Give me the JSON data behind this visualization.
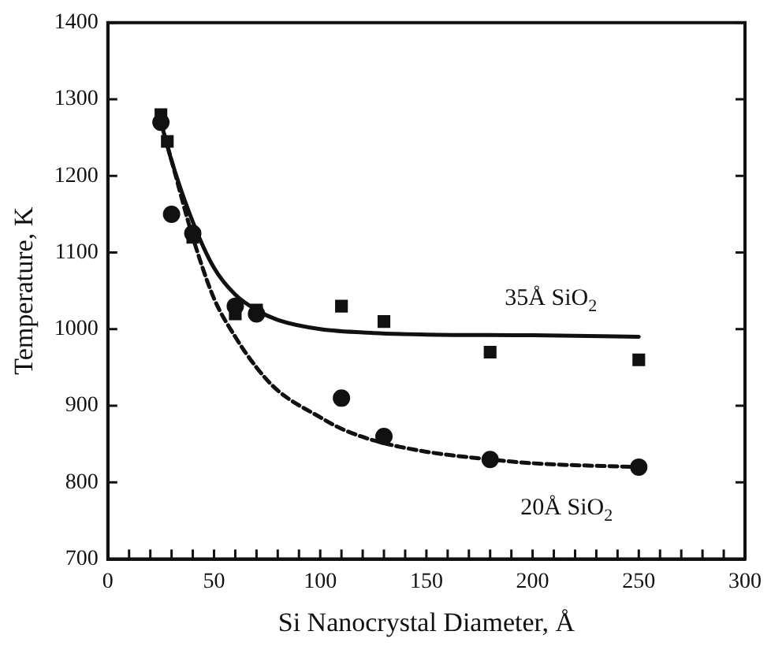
{
  "chart_data": {
    "type": "scatter",
    "xlabel": "Si Nanocrystal Diameter, Å",
    "ylabel": "Temperature, K",
    "xlim": [
      0,
      300
    ],
    "xticks": [
      0,
      {
        "value": 10,
        "label": null
      },
      {
        "value": 20,
        "label": null
      },
      {
        "value": 30,
        "label": null
      },
      {
        "value": 40,
        "label": null
      },
      50,
      {
        "value": 60,
        "label": null
      },
      {
        "value": 70,
        "label": null
      },
      {
        "value": 80,
        "label": null
      },
      {
        "value": 90,
        "label": null
      },
      100,
      {
        "value": 110,
        "label": null
      },
      {
        "value": 120,
        "label": null
      },
      {
        "value": 130,
        "label": null
      },
      {
        "value": 140,
        "label": null
      },
      150,
      {
        "value": 160,
        "label": null
      },
      {
        "value": 170,
        "label": null
      },
      {
        "value": 180,
        "label": null
      },
      {
        "value": 190,
        "label": null
      },
      200,
      {
        "value": 210,
        "label": null
      },
      {
        "value": 220,
        "label": null
      },
      {
        "value": 230,
        "label": null
      },
      {
        "value": 240,
        "label": null
      },
      250,
      {
        "value": 260,
        "label": null
      },
      {
        "value": 270,
        "label": null
      },
      {
        "value": 280,
        "label": null
      },
      {
        "value": 290,
        "label": null
      },
      300
    ],
    "ylim": [
      700,
      1400
    ],
    "yticks": [
      700,
      800,
      900,
      1000,
      1100,
      1200,
      1300,
      1400
    ],
    "grid": false,
    "legend": false,
    "series": [
      {
        "type": "scatter",
        "marker": "square",
        "color": "#111111",
        "x": [
          25,
          28,
          40,
          60,
          70,
          110,
          130,
          180,
          250
        ],
        "values": [
          1280,
          1245,
          1120,
          1020,
          1025,
          1030,
          1010,
          970,
          960
        ]
      },
      {
        "type": "scatter",
        "marker": "circle",
        "color": "#111111",
        "x": [
          25,
          30,
          40,
          60,
          70,
          110,
          130,
          180,
          250
        ],
        "values": [
          1270,
          1150,
          1125,
          1030,
          1020,
          910,
          860,
          830,
          820
        ]
      },
      {
        "type": "line",
        "line_style": "solid",
        "marker": "none",
        "color": "#111111",
        "x": [
          25,
          30,
          40,
          50,
          60,
          70,
          80,
          100,
          125,
          150,
          200,
          250
        ],
        "values": [
          1270,
          1220,
          1140,
          1080,
          1045,
          1025,
          1012,
          1000,
          995,
          993,
          992,
          990
        ]
      },
      {
        "type": "line",
        "line_style": "dashed",
        "marker": "none",
        "color": "#111111",
        "x": [
          25,
          30,
          40,
          50,
          60,
          70,
          80,
          100,
          110,
          125,
          150,
          180,
          200,
          250
        ],
        "values": [
          1270,
          1220,
          1120,
          1040,
          990,
          950,
          920,
          885,
          870,
          855,
          840,
          830,
          825,
          820
        ]
      }
    ],
    "annotations": [
      "35Å SiO$_{2}$",
      "20Å SiO$_{2}$"
    ]
  }
}
